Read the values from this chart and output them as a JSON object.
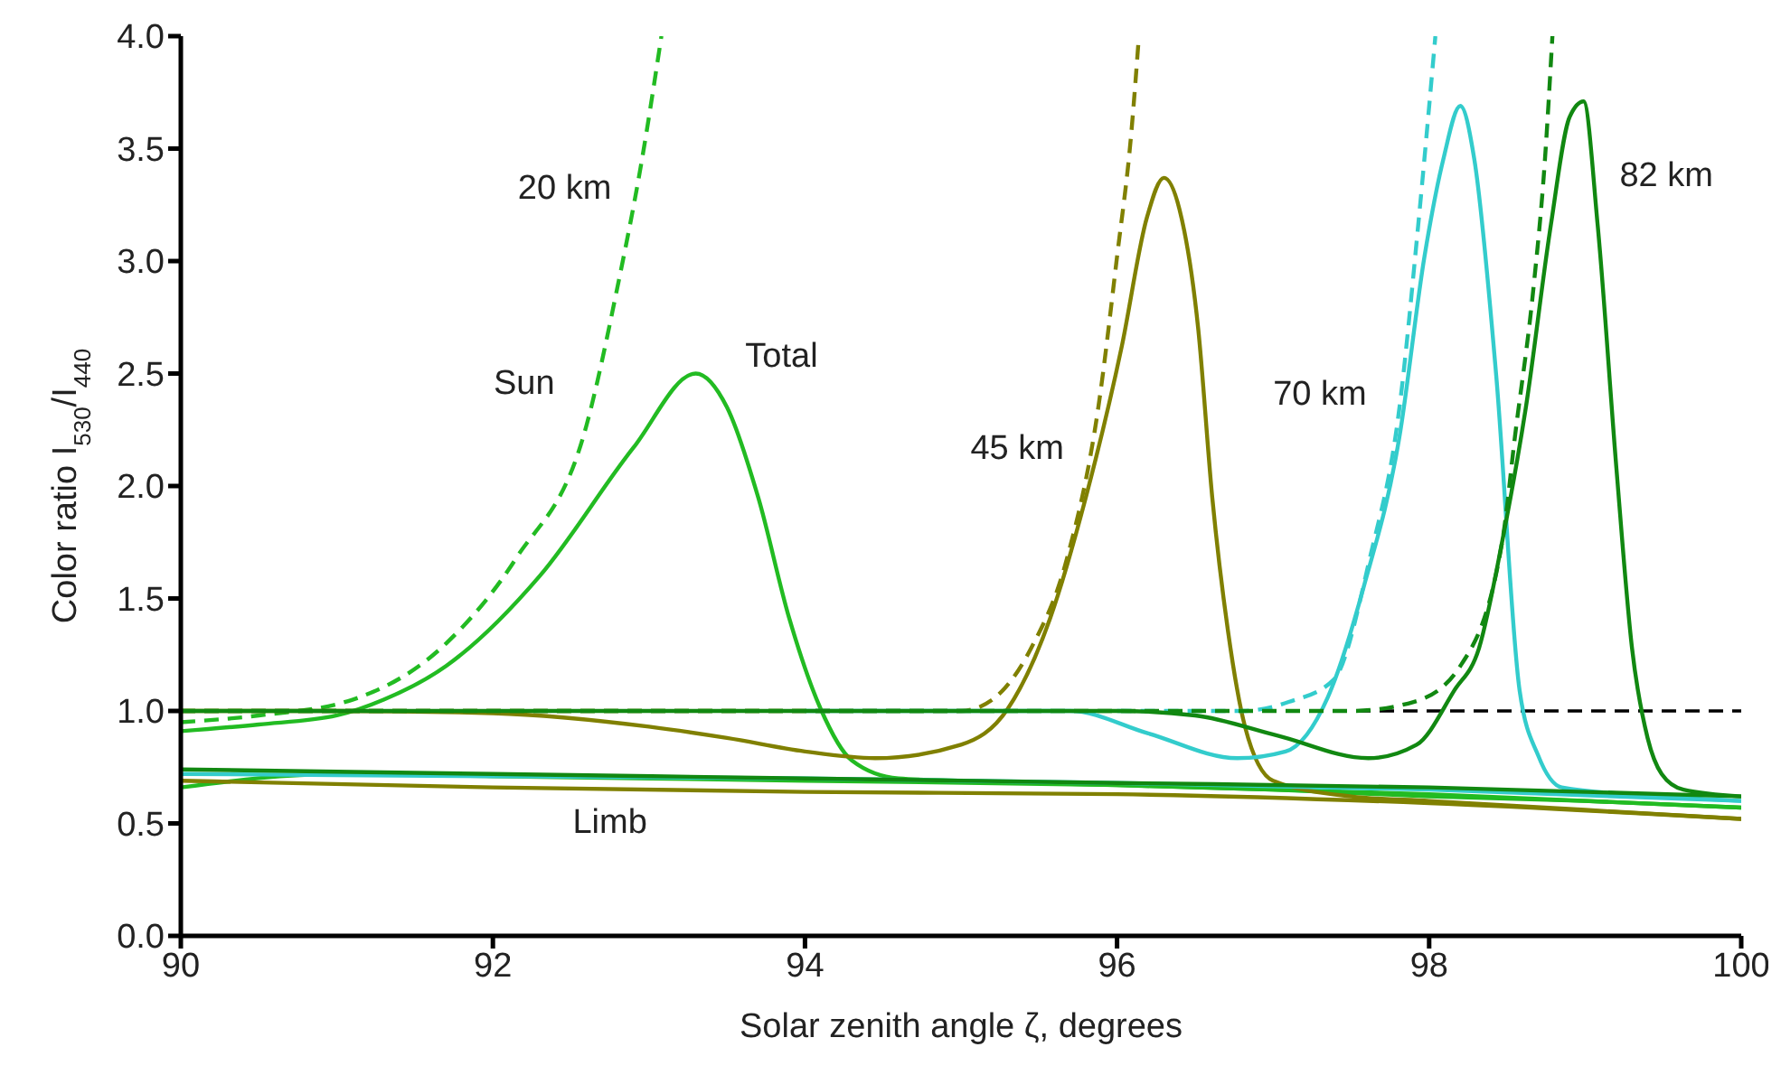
{
  "chart_data": {
    "type": "line",
    "xlabel": "Solar zenith angle ζ, degrees",
    "ylabel": "Color ratio I$_{530}$/I$_{440}$",
    "xlim": [
      90,
      100
    ],
    "xticks": [
      90,
      92,
      94,
      96,
      98,
      100
    ],
    "ylim": [
      0,
      4
    ],
    "yticks": [
      {
        "value": 0,
        "label": "0.0"
      },
      {
        "value": 0.5,
        "label": "0.5"
      },
      {
        "value": 1,
        "label": "1.0"
      },
      {
        "value": 1.5,
        "label": "1.5"
      },
      {
        "value": 2,
        "label": "2.0"
      },
      {
        "value": 2.5,
        "label": "2.5"
      },
      {
        "value": 3,
        "label": "3.0"
      },
      {
        "value": 3.5,
        "label": "3.5"
      },
      {
        "value": 4,
        "label": "4.0"
      }
    ],
    "marker": "none",
    "ref_lines": [
      {
        "axis": "y",
        "value": 1,
        "color": "#000000",
        "line_style": "dashed"
      }
    ],
    "series": [
      {
        "color": "#22bb22",
        "line_style": "solid",
        "x": [
          90,
          90.5,
          91,
          91.3,
          91.7,
          92.3,
          92.9,
          93.3,
          93.5,
          93.7,
          93.9,
          94.1,
          94.3,
          94.6,
          95,
          96,
          97,
          98,
          99,
          100
        ],
        "values": [
          0.91,
          0.94,
          0.98,
          1.05,
          1.2,
          1.6,
          2.17,
          2.5,
          2.35,
          1.95,
          1.41,
          1.01,
          0.78,
          0.7,
          0.69,
          0.67,
          0.65,
          0.62,
          0.6,
          0.57
        ]
      },
      {
        "color": "#22bb22",
        "line_style": "dashed",
        "x": [
          90,
          90.5,
          91.1,
          91.7,
          92.15,
          92.6,
          92.8,
          92.95,
          93.08
        ],
        "values": [
          0.95,
          0.98,
          1.05,
          1.3,
          1.68,
          2.27,
          2.89,
          3.43,
          4.0
        ]
      },
      {
        "color": "#22bb22",
        "line_style": "solid",
        "x": [
          90,
          91,
          92,
          94,
          96,
          98,
          100
        ],
        "values": [
          0.66,
          0.72,
          0.71,
          0.69,
          0.67,
          0.63,
          0.57
        ]
      },
      {
        "color": "#808000",
        "line_style": "solid",
        "x": [
          90,
          91,
          92,
          93,
          93.5,
          94,
          94.45,
          95,
          95.3,
          95.57,
          95.8,
          96.03,
          96.19,
          96.3,
          96.4,
          96.52,
          96.61,
          96.71,
          96.82,
          97,
          97.5,
          98,
          99,
          100
        ],
        "values": [
          1.0,
          1.0,
          0.99,
          0.93,
          0.88,
          0.82,
          0.79,
          0.85,
          1.01,
          1.41,
          1.95,
          2.62,
          3.19,
          3.37,
          3.23,
          2.7,
          1.95,
          1.36,
          0.93,
          0.69,
          0.62,
          0.6,
          0.56,
          0.52
        ]
      },
      {
        "color": "#808000",
        "line_style": "dashed",
        "x": [
          90,
          92,
          94,
          95,
          95.2,
          95.45,
          95.68,
          95.88,
          96.0,
          96.09,
          96.14
        ],
        "values": [
          1.0,
          1.0,
          1.0,
          1.0,
          1.05,
          1.28,
          1.68,
          2.35,
          3.02,
          3.56,
          4.0
        ]
      },
      {
        "color": "#808000",
        "line_style": "solid",
        "x": [
          90,
          92,
          94,
          96,
          98,
          100
        ],
        "values": [
          0.69,
          0.66,
          0.64,
          0.63,
          0.59,
          0.52
        ]
      },
      {
        "color": "#33cccc",
        "line_style": "solid",
        "x": [
          94,
          95.7,
          96.2,
          96.77,
          97.08,
          97.35,
          97.58,
          97.81,
          97.97,
          98.09,
          98.2,
          98.29,
          98.43,
          98.58,
          98.7,
          98.85,
          99.5,
          100
        ],
        "values": [
          1.0,
          1.0,
          0.9,
          0.79,
          0.82,
          1.06,
          1.55,
          2.22,
          3.02,
          3.45,
          3.69,
          3.45,
          2.49,
          1.09,
          0.8,
          0.66,
          0.62,
          0.6
        ]
      },
      {
        "color": "#33cccc",
        "line_style": "dashed",
        "x": [
          96,
          96.8,
          97.1,
          97.39,
          97.62,
          97.81,
          97.93,
          98.04
        ],
        "values": [
          1.0,
          1.0,
          1.04,
          1.14,
          1.68,
          2.35,
          3.16,
          4.0
        ]
      },
      {
        "color": "#33cccc",
        "line_style": "solid",
        "x": [
          90,
          92,
          94,
          96,
          98,
          100
        ],
        "values": [
          0.72,
          0.71,
          0.7,
          0.68,
          0.65,
          0.6
        ]
      },
      {
        "color": "#118811",
        "line_style": "solid",
        "x": [
          90,
          92,
          94,
          96,
          96.5,
          97.03,
          97.61,
          97.92,
          98.16,
          98.32,
          98.47,
          98.62,
          98.78,
          98.9,
          98.99,
          99.08,
          99.2,
          99.3,
          99.4,
          99.49,
          99.63,
          100
        ],
        "values": [
          1.0,
          1.0,
          1.0,
          1.0,
          0.98,
          0.89,
          0.79,
          0.85,
          1.09,
          1.28,
          1.76,
          2.35,
          3.16,
          3.64,
          3.71,
          3.16,
          2.08,
          1.28,
          0.88,
          0.72,
          0.65,
          0.62
        ]
      },
      {
        "color": "#118811",
        "line_style": "dashed",
        "x": [
          90,
          92,
          94,
          96,
          97.5,
          97.9,
          98.2,
          98.47,
          98.55,
          98.67,
          98.74,
          98.79
        ],
        "values": [
          1.0,
          1.0,
          1.0,
          1.0,
          1.0,
          1.04,
          1.2,
          1.76,
          2.22,
          2.89,
          3.43,
          4.0
        ]
      },
      {
        "color": "#118811",
        "line_style": "solid",
        "x": [
          90,
          92,
          94,
          96,
          98,
          100
        ],
        "values": [
          0.74,
          0.72,
          0.7,
          0.68,
          0.66,
          0.62
        ]
      }
    ],
    "annotations": [
      "20 km",
      "Sun",
      "Total",
      "Limb",
      "45 km",
      "70 km",
      "82 km"
    ]
  }
}
